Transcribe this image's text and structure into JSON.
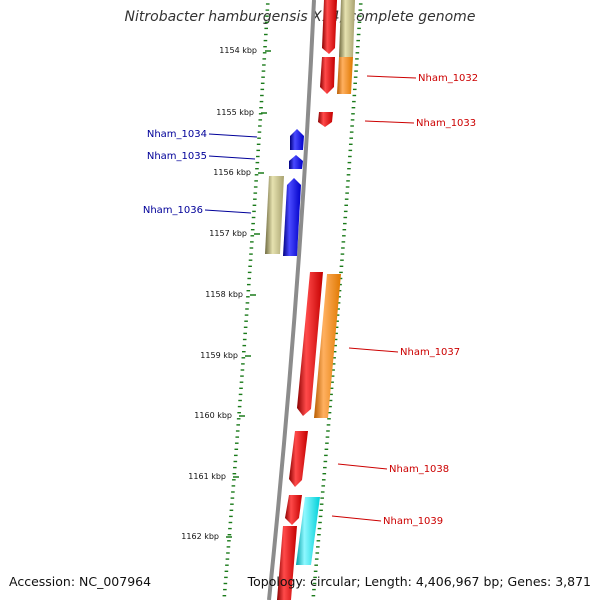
{
  "title": "Nitrobacter hamburgensis X14, complete genome",
  "footer": {
    "accession": "Accession: NC_007964",
    "summary": "Topology: circular; Length: 4,406,967 bp; Genes: 3,871"
  },
  "colors": {
    "backbone": "#8c8c8c",
    "tick": "#1a7a1a",
    "forward_label": "#cc0000",
    "reverse_label": "#000099",
    "cds": "#ee0000",
    "gene": "#ff8c00",
    "rev_cds": "#0000ee",
    "rev_gene": "#b2ac73",
    "cyan": "#00e5ee"
  },
  "scale_labels": [
    "1154 kbp",
    "1155 kbp",
    "1156 kbp",
    "1157 kbp",
    "1158 kbp",
    "1159 kbp",
    "1160 kbp",
    "1161 kbp",
    "1162 kbp"
  ],
  "gene_labels": {
    "forward": [
      "Nham_1032",
      "Nham_1033",
      "Nham_1037",
      "Nham_1038",
      "Nham_1039"
    ],
    "reverse": [
      "Nham_1034",
      "Nham_1035",
      "Nham_1036"
    ]
  }
}
